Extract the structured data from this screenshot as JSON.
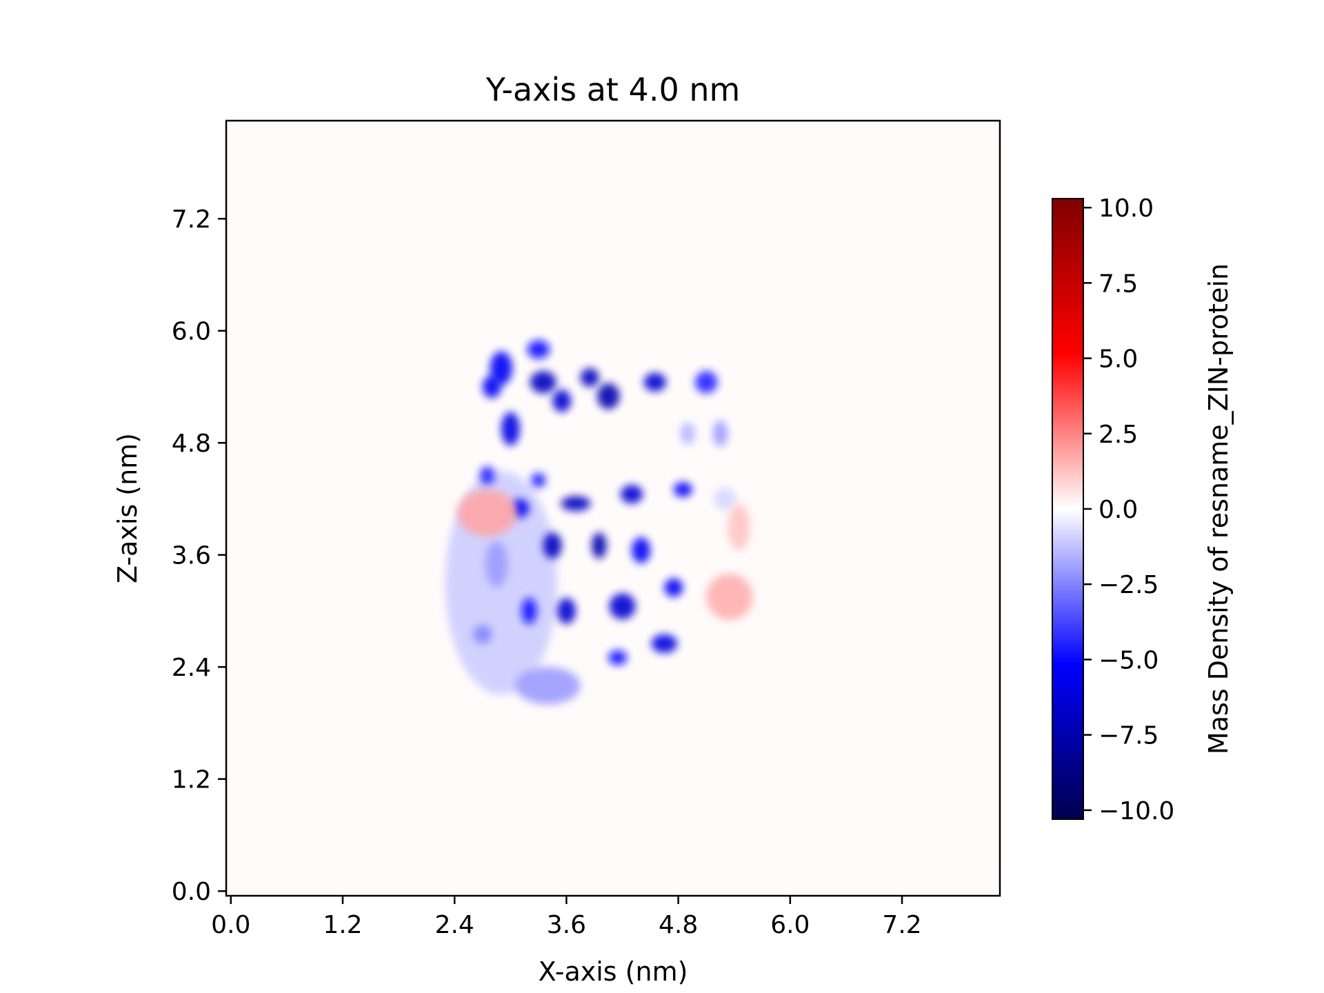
{
  "chart_data": {
    "type": "heatmap",
    "title": "Y-axis at 4.0 nm",
    "xlabel": "X-axis (nm)",
    "ylabel": "Z-axis (nm)",
    "xlim": [
      -0.05,
      8.25
    ],
    "ylim": [
      -0.05,
      8.25
    ],
    "x_ticks": [
      0.0,
      1.2,
      2.4,
      3.6,
      4.8,
      6.0,
      7.2
    ],
    "x_tick_labels": [
      "0.0",
      "1.2",
      "2.4",
      "3.6",
      "4.8",
      "6.0",
      "7.2"
    ],
    "y_ticks": [
      0.0,
      1.2,
      2.4,
      3.6,
      4.8,
      6.0,
      7.2
    ],
    "y_tick_labels": [
      "0.0",
      "1.2",
      "2.4",
      "3.6",
      "4.8",
      "6.0",
      "7.2"
    ],
    "grid": false,
    "colormap": "seismic",
    "colormap_colors": [
      "#00004d",
      "#0000ff",
      "#ffffff",
      "#ff0000",
      "#800000"
    ],
    "colorbar": {
      "label": "Mass Density of resname_ZIN-protein",
      "range": [
        -10.3,
        10.3
      ],
      "ticks": [
        10.0,
        7.5,
        5.0,
        2.5,
        0.0,
        -2.5,
        -5.0,
        -7.5,
        -10.0
      ],
      "tick_labels": [
        "10.0",
        "7.5",
        "5.0",
        "2.5",
        "0.0",
        "−2.5",
        "−5.0",
        "−7.5",
        "−10.0"
      ]
    },
    "blobs": [
      {
        "x": 2.9,
        "z": 3.3,
        "sx": 0.6,
        "sz": 1.2,
        "v": -1.0
      },
      {
        "x": 3.4,
        "z": 2.2,
        "sx": 0.35,
        "sz": 0.2,
        "v": -2.0
      },
      {
        "x": 2.9,
        "z": 5.6,
        "sx": 0.12,
        "sz": 0.18,
        "v": -5.5
      },
      {
        "x": 2.8,
        "z": 5.4,
        "sx": 0.1,
        "sz": 0.12,
        "v": -5.5
      },
      {
        "x": 3.3,
        "z": 5.8,
        "sx": 0.12,
        "sz": 0.1,
        "v": -5.0
      },
      {
        "x": 3.35,
        "z": 5.45,
        "sx": 0.14,
        "sz": 0.12,
        "v": -7.0
      },
      {
        "x": 3.55,
        "z": 5.25,
        "sx": 0.1,
        "sz": 0.12,
        "v": -6.5
      },
      {
        "x": 3.85,
        "z": 5.5,
        "sx": 0.1,
        "sz": 0.1,
        "v": -7.0
      },
      {
        "x": 4.05,
        "z": 5.3,
        "sx": 0.12,
        "sz": 0.14,
        "v": -7.5
      },
      {
        "x": 4.55,
        "z": 5.45,
        "sx": 0.12,
        "sz": 0.1,
        "v": -6.5
      },
      {
        "x": 5.1,
        "z": 5.45,
        "sx": 0.12,
        "sz": 0.12,
        "v": -4.5
      },
      {
        "x": 3.0,
        "z": 4.95,
        "sx": 0.1,
        "sz": 0.18,
        "v": -6.0
      },
      {
        "x": 5.25,
        "z": 4.9,
        "sx": 0.08,
        "sz": 0.14,
        "v": -2.0
      },
      {
        "x": 4.9,
        "z": 4.9,
        "sx": 0.08,
        "sz": 0.12,
        "v": -1.5
      },
      {
        "x": 2.75,
        "z": 4.45,
        "sx": 0.08,
        "sz": 0.1,
        "v": -4.5
      },
      {
        "x": 3.3,
        "z": 4.4,
        "sx": 0.08,
        "sz": 0.08,
        "v": -4.5
      },
      {
        "x": 3.1,
        "z": 4.1,
        "sx": 0.1,
        "sz": 0.1,
        "v": -5.5
      },
      {
        "x": 3.7,
        "z": 4.15,
        "sx": 0.16,
        "sz": 0.08,
        "v": -7.0
      },
      {
        "x": 4.3,
        "z": 4.25,
        "sx": 0.12,
        "sz": 0.1,
        "v": -6.5
      },
      {
        "x": 4.85,
        "z": 4.3,
        "sx": 0.1,
        "sz": 0.08,
        "v": -5.5
      },
      {
        "x": 3.45,
        "z": 3.7,
        "sx": 0.1,
        "sz": 0.14,
        "v": -7.0
      },
      {
        "x": 3.95,
        "z": 3.7,
        "sx": 0.08,
        "sz": 0.14,
        "v": -7.5
      },
      {
        "x": 4.4,
        "z": 3.65,
        "sx": 0.1,
        "sz": 0.14,
        "v": -5.5
      },
      {
        "x": 3.2,
        "z": 3.0,
        "sx": 0.08,
        "sz": 0.14,
        "v": -5.0
      },
      {
        "x": 3.6,
        "z": 3.0,
        "sx": 0.1,
        "sz": 0.14,
        "v": -6.5
      },
      {
        "x": 4.2,
        "z": 3.05,
        "sx": 0.14,
        "sz": 0.14,
        "v": -6.5
      },
      {
        "x": 4.75,
        "z": 3.25,
        "sx": 0.1,
        "sz": 0.1,
        "v": -5.5
      },
      {
        "x": 4.65,
        "z": 2.65,
        "sx": 0.14,
        "sz": 0.1,
        "v": -6.0
      },
      {
        "x": 4.15,
        "z": 2.5,
        "sx": 0.1,
        "sz": 0.08,
        "v": -5.0
      },
      {
        "x": 2.7,
        "z": 2.75,
        "sx": 0.1,
        "sz": 0.1,
        "v": -2.5
      },
      {
        "x": 2.85,
        "z": 3.5,
        "sx": 0.12,
        "sz": 0.25,
        "v": -2.0
      },
      {
        "x": 5.3,
        "z": 4.2,
        "sx": 0.12,
        "sz": 0.12,
        "v": -0.8
      },
      {
        "x": 2.75,
        "z": 4.05,
        "sx": 0.32,
        "sz": 0.25,
        "v": 1.8
      },
      {
        "x": 5.35,
        "z": 3.15,
        "sx": 0.25,
        "sz": 0.25,
        "v": 1.6
      },
      {
        "x": 5.45,
        "z": 3.9,
        "sx": 0.12,
        "sz": 0.25,
        "v": 1.2
      }
    ]
  }
}
